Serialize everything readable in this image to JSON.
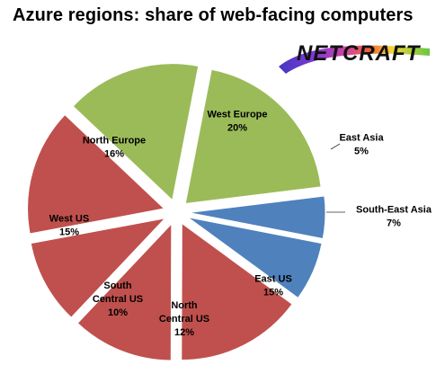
{
  "title": "Azure regions: share of web-facing computers",
  "logo": {
    "text": "NETCRAFT"
  },
  "chart_data": {
    "type": "pie",
    "title": "Azure regions: share of web-facing computers",
    "legend": "none",
    "data_labels": "name and percent",
    "slices": [
      {
        "name": "West Europe",
        "label_lines": [
          "West Europe",
          "20%"
        ],
        "value": 20,
        "color": "#9BBB59"
      },
      {
        "name": "East Asia",
        "label_lines": [
          "East Asia",
          "5%"
        ],
        "value": 5,
        "color": "#4F81BD"
      },
      {
        "name": "South-East Asia",
        "label_lines": [
          "South-East  Asia",
          "7%"
        ],
        "value": 7,
        "color": "#4F81BD"
      },
      {
        "name": "East US",
        "label_lines": [
          "East US",
          "15%"
        ],
        "value": 15,
        "color": "#C0504D"
      },
      {
        "name": "North Central US",
        "label_lines": [
          "North",
          "Central US",
          "12%"
        ],
        "value": 12,
        "color": "#C0504D"
      },
      {
        "name": "South Central US",
        "label_lines": [
          "South",
          "Central US",
          "10%"
        ],
        "value": 10,
        "color": "#C0504D"
      },
      {
        "name": "West US",
        "label_lines": [
          "West US",
          "15%"
        ],
        "value": 15,
        "color": "#C0504D"
      },
      {
        "name": "North Europe",
        "label_lines": [
          "North Europe",
          "16%"
        ],
        "value": 16,
        "color": "#9BBB59"
      }
    ]
  }
}
